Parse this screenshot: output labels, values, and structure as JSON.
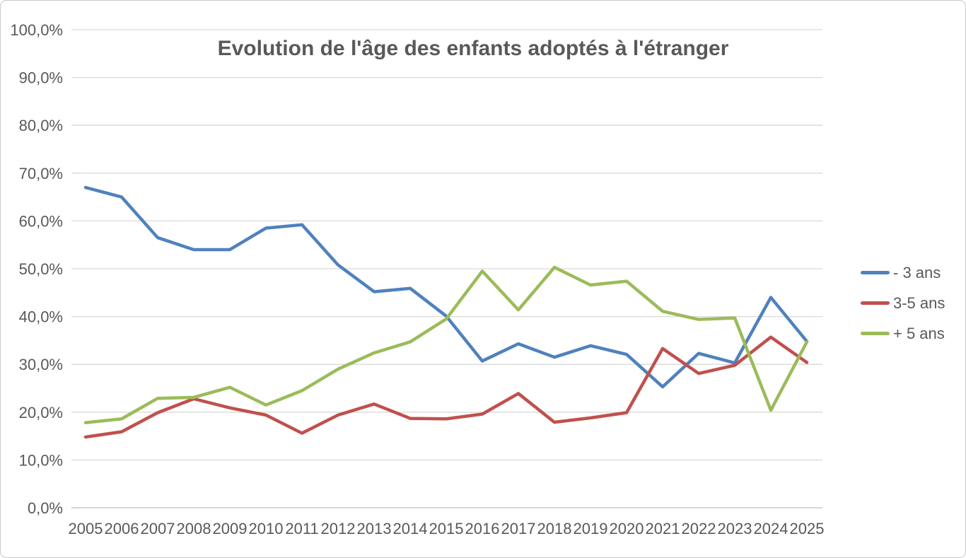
{
  "chart_data": {
    "type": "line",
    "title": "Evolution de l'âge des enfants adoptés à l'étranger",
    "xlabel": "",
    "ylabel": "",
    "categories": [
      "2005",
      "2006",
      "2007",
      "2008",
      "2009",
      "2010",
      "2011",
      "2012",
      "2013",
      "2014",
      "2015",
      "2016",
      "2017",
      "2018",
      "2019",
      "2020",
      "2021",
      "2022",
      "2023",
      "2024",
      "2025"
    ],
    "series": [
      {
        "name": "- 3 ans",
        "color": "#4F81BD",
        "values": [
          67.0,
          65.0,
          56.5,
          54.0,
          54.0,
          58.5,
          59.2,
          50.8,
          45.2,
          45.9,
          40.1,
          30.7,
          34.3,
          31.5,
          33.9,
          32.1,
          25.3,
          32.3,
          30.3,
          44.0,
          34.8
        ]
      },
      {
        "name": "3-5 ans",
        "color": "#C0504D",
        "values": [
          14.8,
          15.9,
          19.9,
          22.8,
          20.9,
          19.4,
          15.6,
          19.4,
          21.7,
          18.7,
          18.6,
          19.6,
          23.9,
          17.9,
          18.8,
          19.9,
          33.3,
          28.1,
          29.8,
          35.7,
          30.4
        ]
      },
      {
        "name": "+ 5 ans",
        "color": "#9BBB59",
        "values": [
          17.8,
          18.6,
          22.9,
          23.1,
          25.2,
          21.5,
          24.5,
          29.0,
          32.4,
          34.7,
          39.5,
          49.5,
          41.4,
          50.3,
          46.6,
          47.4,
          41.1,
          39.4,
          39.7,
          20.4,
          34.7
        ]
      }
    ],
    "ylim": [
      0,
      100
    ],
    "ytick_step": 10,
    "yticklabels": [
      "0,0%",
      "10,0%",
      "20,0%",
      "30,0%",
      "40,0%",
      "50,0%",
      "60,0%",
      "70,0%",
      "80,0%",
      "90,0%",
      "100,0%"
    ],
    "grid": true,
    "gridline_color": "#D9D9D9",
    "axis_line_color": "#BFBFBF",
    "text_color": "#595959",
    "legend_position": "right"
  }
}
